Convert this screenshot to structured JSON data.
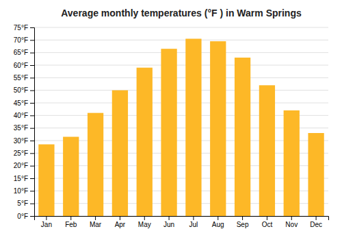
{
  "chart_data": {
    "type": "bar",
    "title": "Average monthly temperatures (°F ) in Warm Springs",
    "categories": [
      "Jan",
      "Feb",
      "Mar",
      "Apr",
      "May",
      "Jun",
      "Jul",
      "Aug",
      "Sep",
      "Oct",
      "Nov",
      "Dec"
    ],
    "values": [
      28.5,
      31.5,
      41.0,
      50.0,
      59.0,
      66.5,
      70.5,
      69.5,
      63.0,
      52.0,
      42.0,
      33.0
    ],
    "color": "#FDB827",
    "ylim": [
      0,
      75
    ],
    "yticks": [
      {
        "value": 0,
        "label": "0°F"
      },
      {
        "value": 5,
        "label": "5°F"
      },
      {
        "value": 10,
        "label": "10°F"
      },
      {
        "value": 15,
        "label": "15°F"
      },
      {
        "value": 20,
        "label": "20°F"
      },
      {
        "value": 25,
        "label": "25°F"
      },
      {
        "value": 30,
        "label": "30°F"
      },
      {
        "value": 35,
        "label": "35°F"
      },
      {
        "value": 40,
        "label": "40°F"
      },
      {
        "value": 45,
        "label": "45°F"
      },
      {
        "value": 50,
        "label": "50°F"
      },
      {
        "value": 55,
        "label": "55°F"
      },
      {
        "value": 60,
        "label": "60°F"
      },
      {
        "value": 65,
        "label": "65°F"
      },
      {
        "value": 70,
        "label": "70°F"
      },
      {
        "value": 75,
        "label": "75°F"
      }
    ],
    "grid": true
  }
}
